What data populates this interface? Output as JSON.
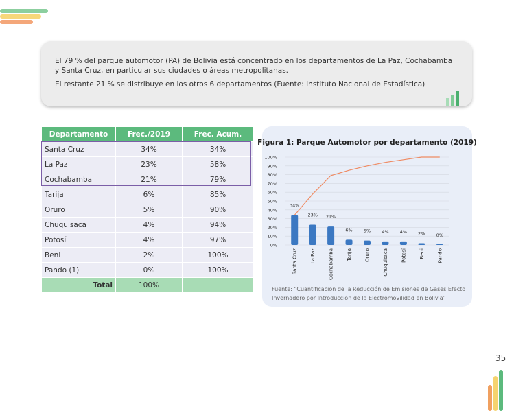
{
  "text": {
    "paragraphs": [
      "El 79 % del parque automotor (PA) de Bolivia está concentrado en los departamentos de La Paz, Cochabamba y Santa Cruz, en particular sus ciudades o áreas metropolitanas.",
      "El restante 21 % se distribuye en los otros 6 departamentos (Fuente: Instituto Nacional de Estadística)"
    ]
  },
  "table": {
    "headers": [
      "Departamento",
      "Frec./2019",
      "Frec. Acum."
    ],
    "rows": [
      [
        "Santa Cruz",
        "34%",
        "34%"
      ],
      [
        "La Paz",
        "23%",
        "58%"
      ],
      [
        "Cochabamba",
        "21%",
        "79%"
      ],
      [
        "Tarija",
        "6%",
        "85%"
      ],
      [
        "Oruro",
        "5%",
        "90%"
      ],
      [
        "Chuquisaca",
        "4%",
        "94%"
      ],
      [
        "Potosí",
        "4%",
        "97%"
      ],
      [
        "Beni",
        "2%",
        "100%"
      ],
      [
        "Pando (1)",
        "0%",
        "100%"
      ]
    ],
    "total": [
      "Total",
      "100%"
    ]
  },
  "chart_data": {
    "type": "bar",
    "title": "Figura 1: Parque Automotor por departamento (2019)",
    "categories": [
      "Santa Cruz",
      "La Paz",
      "Cochabamba",
      "Tarija",
      "Oruro",
      "Chuquisaca",
      "Potosí",
      "Beni",
      "Pando"
    ],
    "series": [
      {
        "type": "bar",
        "color": "#3b78c2",
        "values": [
          34,
          23,
          21,
          6,
          5,
          4,
          4,
          2,
          0
        ],
        "value_labels": [
          "34%",
          "23%",
          "21%",
          "6%",
          "5%",
          "4%",
          "4%",
          "2%",
          "0%"
        ]
      },
      {
        "type": "line",
        "color": "#ef8a62",
        "values": [
          34,
          58,
          79,
          85,
          90,
          94,
          97,
          100,
          100
        ]
      }
    ],
    "ylim": [
      0,
      100
    ],
    "yticks": [
      {
        "value": 0,
        "label": "0%"
      },
      {
        "value": 10,
        "label": "10%"
      },
      {
        "value": 20,
        "label": "20%"
      },
      {
        "value": 30,
        "label": "30%"
      },
      {
        "value": 40,
        "label": "40%"
      },
      {
        "value": 50,
        "label": "50%"
      },
      {
        "value": 60,
        "label": "60%"
      },
      {
        "value": 70,
        "label": "70%"
      },
      {
        "value": 80,
        "label": "80%"
      },
      {
        "value": 90,
        "label": "90%"
      },
      {
        "value": 100,
        "label": "100%"
      }
    ],
    "grid": true,
    "note": "Fuente: “Cuantificación de la Reducción de Emisiones de Gases Efecto Invernadero por Introducción de la Electromovilidad en Bolivia”"
  },
  "page_number": "35"
}
